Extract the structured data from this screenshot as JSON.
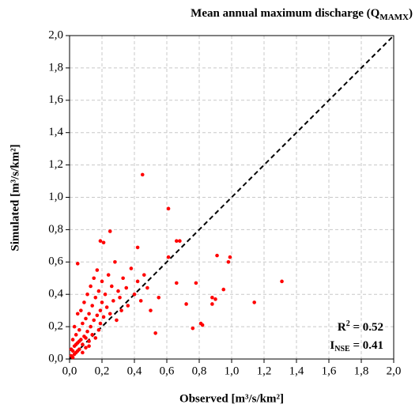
{
  "chart_data": {
    "type": "scatter",
    "title": "Mean annual maximum discharge (Q",
    "title_sub": "MAMX",
    "title_end": ")",
    "x_label": "Observed [m³/s/km²]",
    "y_label": "Simulated [m³/s/km²]",
    "annotations": [
      {
        "text": "R",
        "sup": "2",
        "rest": " = 0.52"
      },
      {
        "text": "I",
        "sub": "NSE",
        "rest": " = 0.41"
      }
    ],
    "color": "#ff0000",
    "grid": true,
    "xlim": [
      0,
      2
    ],
    "ylim": [
      0,
      2
    ],
    "xticks": [
      {
        "value": 0,
        "label": "0,0"
      },
      {
        "value": 0.2,
        "label": "0,2"
      },
      {
        "value": 0.4,
        "label": "0,4"
      },
      {
        "value": 0.6,
        "label": "0,6"
      },
      {
        "value": 0.8,
        "label": "0,8"
      },
      {
        "value": 1,
        "label": "1,0"
      },
      {
        "value": 1.2,
        "label": "1,2"
      },
      {
        "value": 1.4,
        "label": "1,4"
      },
      {
        "value": 1.6,
        "label": "1,6"
      },
      {
        "value": 1.8,
        "label": "1,8"
      },
      {
        "value": 2,
        "label": "2,0"
      }
    ],
    "yticks": [
      {
        "value": 0,
        "label": "0,0"
      },
      {
        "value": 0.2,
        "label": "0,2"
      },
      {
        "value": 0.4,
        "label": "0,4"
      },
      {
        "value": 0.6,
        "label": "0,6"
      },
      {
        "value": 0.8,
        "label": "0,8"
      },
      {
        "value": 1,
        "label": "1,0"
      },
      {
        "value": 1.2,
        "label": "1,2"
      },
      {
        "value": 1.4,
        "label": "1,4"
      },
      {
        "value": 1.6,
        "label": "1,6"
      },
      {
        "value": 1.8,
        "label": "1,8"
      },
      {
        "value": 2,
        "label": "2,0"
      }
    ],
    "x": [
      0.01,
      0.02,
      0.02,
      0.03,
      0.03,
      0.04,
      0.04,
      0.05,
      0.05,
      0.06,
      0.06,
      0.07,
      0.07,
      0.08,
      0.08,
      0.09,
      0.09,
      0.1,
      0.1,
      0.11,
      0.11,
      0.12,
      0.12,
      0.13,
      0.13,
      0.14,
      0.14,
      0.15,
      0.15,
      0.16,
      0.16,
      0.17,
      0.17,
      0.18,
      0.18,
      0.19,
      0.19,
      0.2,
      0.2,
      0.21,
      0.22,
      0.23,
      0.24,
      0.25,
      0.26,
      0.27,
      0.28,
      0.29,
      0.3,
      0.31,
      0.32,
      0.33,
      0.35,
      0.36,
      0.38,
      0.4,
      0.42,
      0.44,
      0.46,
      0.48,
      0.45,
      0.61,
      1.31,
      1.14,
      0.99,
      0.98,
      0.91,
      0.81,
      0.82,
      0.76,
      0.88,
      0.88,
      0.05,
      0.25,
      0.19,
      0.21,
      0.42,
      0.66,
      0.68,
      0.61,
      0.72,
      0.78,
      0.53,
      0.66,
      0.5,
      0.55,
      0.95,
      0.9,
      0.01,
      0.02,
      0.03,
      0.04,
      0.05,
      0.06,
      0.08,
      0.1,
      0.12
    ],
    "values": [
      0.02,
      0.05,
      0.12,
      0.08,
      0.2,
      0.04,
      0.15,
      0.1,
      0.28,
      0.06,
      0.18,
      0.12,
      0.3,
      0.09,
      0.22,
      0.14,
      0.35,
      0.07,
      0.25,
      0.17,
      0.4,
      0.11,
      0.28,
      0.2,
      0.45,
      0.15,
      0.33,
      0.24,
      0.5,
      0.13,
      0.38,
      0.27,
      0.55,
      0.18,
      0.42,
      0.22,
      0.3,
      0.35,
      0.48,
      0.26,
      0.4,
      0.32,
      0.52,
      0.28,
      0.45,
      0.36,
      0.6,
      0.24,
      0.42,
      0.38,
      0.3,
      0.5,
      0.44,
      0.33,
      0.56,
      0.4,
      0.48,
      0.36,
      0.52,
      0.44,
      1.14,
      0.93,
      0.48,
      0.35,
      0.63,
      0.6,
      0.64,
      0.22,
      0.21,
      0.19,
      0.38,
      0.34,
      0.59,
      0.79,
      0.73,
      0.72,
      0.69,
      0.73,
      0.73,
      0.63,
      0.34,
      0.47,
      0.16,
      0.47,
      0.3,
      0.38,
      0.43,
      0.37,
      0.06,
      0.01,
      0.03,
      0.09,
      0.05,
      0.11,
      0.04,
      0.13,
      0.08
    ]
  }
}
